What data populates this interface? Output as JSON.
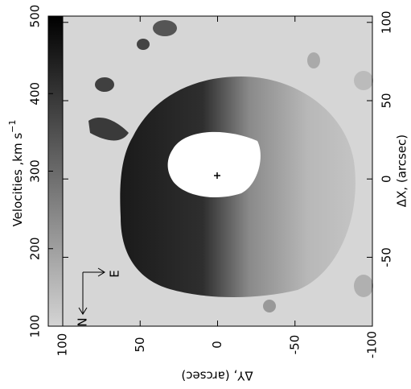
{
  "chart_data": {
    "type": "image",
    "colorbar": {
      "label": "Velocities ,km s",
      "label_exponent": "−1",
      "ylim": [
        100,
        500
      ],
      "yticks": [
        100,
        200,
        300,
        400,
        500
      ]
    },
    "xlabel": "ΔY, (arcsec)",
    "ylabel": "ΔX, (arcsec)",
    "xlim": [
      100,
      -100
    ],
    "xticks": [
      100,
      50,
      0,
      -50,
      -100
    ],
    "ylim": [
      104,
      -94
    ],
    "yticks": [
      100,
      50,
      0,
      -50
    ],
    "compass": {
      "north": "N",
      "east": "E"
    }
  }
}
